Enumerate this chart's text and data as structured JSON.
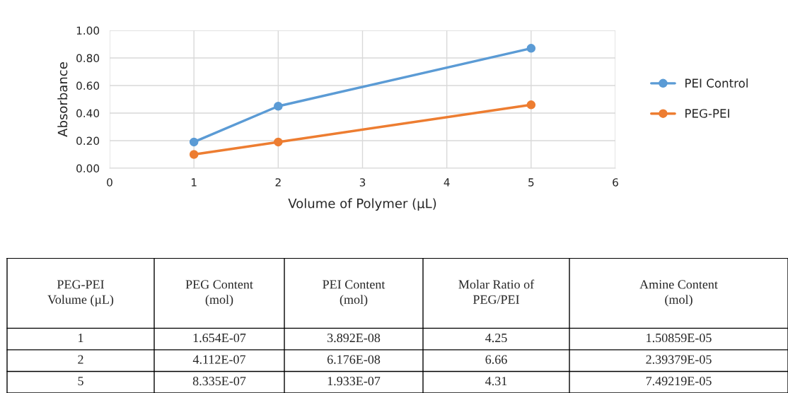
{
  "chart_data": [
    {
      "type": "line",
      "xlabel": "Volume of Polymer (µL)",
      "ylabel": "Absorbance",
      "x": [
        1,
        2,
        5
      ],
      "series": [
        {
          "name": "PEI Control",
          "color": "#5b9bd5",
          "values": [
            0.19,
            0.45,
            0.87
          ]
        },
        {
          "name": "PEG-PEI",
          "color": "#ed7d31",
          "values": [
            0.1,
            0.19,
            0.46
          ]
        }
      ],
      "xlim": [
        0,
        6
      ],
      "xticks": [
        0,
        1,
        2,
        3,
        4,
        5,
        6
      ],
      "ylim": [
        0,
        1
      ],
      "yticks": [
        {
          "value": 0,
          "label": "0.00"
        },
        {
          "value": 0.2,
          "label": "0.20"
        },
        {
          "value": 0.4,
          "label": "0.40"
        },
        {
          "value": 0.6,
          "label": "0.60"
        },
        {
          "value": 0.8,
          "label": "0.80"
        },
        {
          "value": 1,
          "label": "1.00"
        }
      ],
      "grid": true,
      "legend": "right",
      "marker": "circle",
      "line_style": "solid"
    },
    {
      "type": "other",
      "categories": [
        "PEG-PEI\nVolume (µL)",
        "PEG Content\n(mol)",
        "PEI Content\n(mol)",
        "Molar Ratio of\nPEG/PEI",
        "Amine Content\n(mol)"
      ],
      "annotations": [
        "1",
        "1.654E-07",
        "3.892E-08",
        "4.25",
        "1.50859E-05",
        "2",
        "4.112E-07",
        "6.176E-08",
        "6.66",
        "2.39379E-05",
        "5",
        "8.335E-07",
        "1.933E-07",
        "4.31",
        "7.49219E-05"
      ]
    }
  ]
}
